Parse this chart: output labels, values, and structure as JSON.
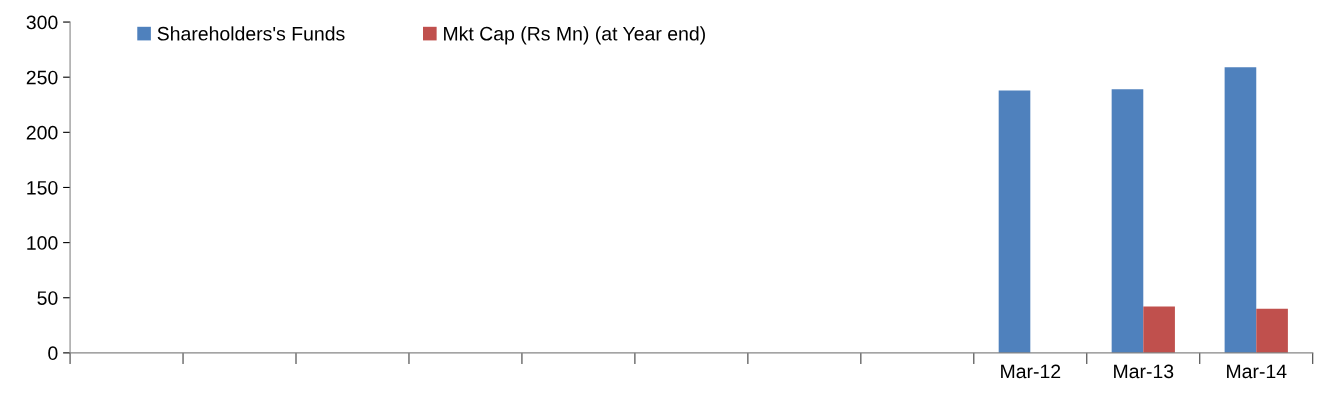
{
  "chart_data": {
    "type": "bar",
    "categories": [
      null,
      null,
      null,
      null,
      null,
      null,
      null,
      null,
      "Mar-12",
      "Mar-13",
      "Mar-14"
    ],
    "series": [
      {
        "name": "Shareholders's Funds",
        "color": "#4f81bd",
        "values": [
          null,
          null,
          null,
          null,
          null,
          null,
          null,
          null,
          238,
          239,
          259
        ]
      },
      {
        "name": "Mkt Cap (Rs Mn) (at Year end)",
        "color": "#c0504d",
        "values": [
          null,
          null,
          null,
          null,
          null,
          null,
          null,
          null,
          null,
          42,
          40
        ]
      }
    ],
    "ylim": [
      0,
      300
    ],
    "yticks": [
      0,
      50,
      100,
      150,
      200,
      250,
      300
    ],
    "grid": false,
    "legend": "top left"
  }
}
